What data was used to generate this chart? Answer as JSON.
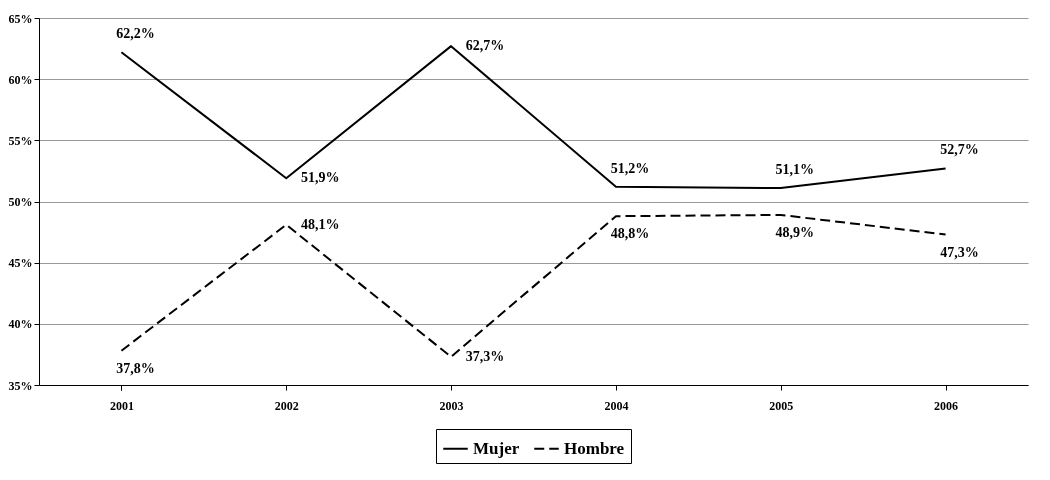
{
  "chart_data": {
    "type": "line",
    "categories": [
      "2001",
      "2002",
      "2003",
      "2004",
      "2005",
      "2006"
    ],
    "series": [
      {
        "name": "Mujer",
        "color": "#000000",
        "line_style": "solid",
        "values": [
          62.2,
          51.9,
          62.7,
          51.2,
          51.1,
          52.7
        ],
        "value_labels": [
          "62,2%",
          "51,9%",
          "62,7%",
          "51,2%",
          "51,1%",
          "52,7%"
        ]
      },
      {
        "name": "Hombre",
        "color": "#000000",
        "line_style": "dashed",
        "values": [
          37.8,
          48.1,
          37.3,
          48.8,
          48.9,
          47.3
        ],
        "value_labels": [
          "37,8%",
          "48,1%",
          "37,3%",
          "48,8%",
          "48,9%",
          "47,3%"
        ]
      }
    ],
    "ylim": [
      35,
      65
    ],
    "yticks": [
      {
        "value": 35,
        "label": "35%"
      },
      {
        "value": 40,
        "label": "40%"
      },
      {
        "value": 45,
        "label": "45%"
      },
      {
        "value": 50,
        "label": "50%"
      },
      {
        "value": 55,
        "label": "55%"
      },
      {
        "value": 60,
        "label": "60%"
      },
      {
        "value": 65,
        "label": "65%"
      }
    ],
    "grid": "y",
    "legend": "bottom",
    "marker": "none"
  }
}
